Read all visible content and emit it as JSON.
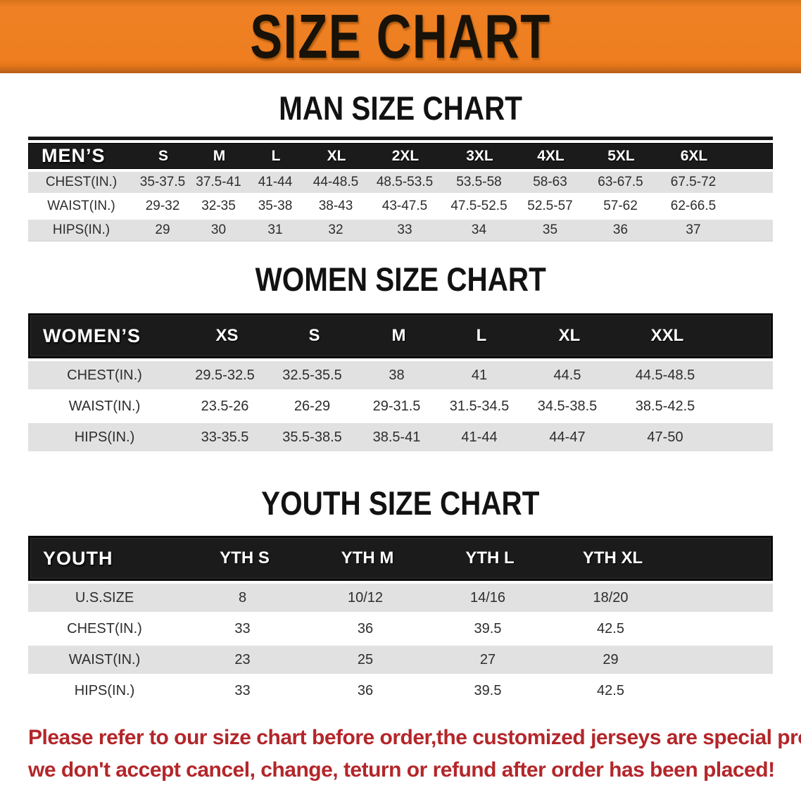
{
  "banner": {
    "title": "SIZE CHART"
  },
  "sections": {
    "men": {
      "heading": "MAN SIZE CHART",
      "table": {
        "corner": "MEN’S",
        "columns": [
          "S",
          "M",
          "L",
          "XL",
          "2XL",
          "3XL",
          "4XL",
          "5XL",
          "6XL"
        ],
        "rows": [
          {
            "label": "CHEST(IN.)",
            "values": [
              "35-37.5",
              "37.5-41",
              "41-44",
              "44-48.5",
              "48.5-53.5",
              "53.5-58",
              "58-63",
              "63-67.5",
              "67.5-72"
            ]
          },
          {
            "label": "WAIST(IN.)",
            "values": [
              "29-32",
              "32-35",
              "35-38",
              "38-43",
              "43-47.5",
              "47.5-52.5",
              "52.5-57",
              "57-62",
              "62-66.5"
            ]
          },
          {
            "label": "HIPS(IN.)",
            "values": [
              "29",
              "30",
              "31",
              "32",
              "33",
              "34",
              "35",
              "36",
              "37"
            ]
          }
        ]
      }
    },
    "women": {
      "heading": "WOMEN SIZE CHART",
      "table": {
        "corner": "WOMEN’S",
        "columns": [
          "XS",
          "S",
          "M",
          "L",
          "XL",
          "XXL"
        ],
        "rows": [
          {
            "label": "CHEST(IN.)",
            "values": [
              "29.5-32.5",
              "32.5-35.5",
              "38",
              "41",
              "44.5",
              "44.5-48.5"
            ]
          },
          {
            "label": "WAIST(IN.)",
            "values": [
              "23.5-26",
              "26-29",
              "29-31.5",
              "31.5-34.5",
              "34.5-38.5",
              "38.5-42.5"
            ]
          },
          {
            "label": "HIPS(IN.)",
            "values": [
              "33-35.5",
              "35.5-38.5",
              "38.5-41",
              "41-44",
              "44-47",
              "47-50"
            ]
          }
        ]
      }
    },
    "youth": {
      "heading": "YOUTH SIZE CHART",
      "table": {
        "corner": "YOUTH",
        "columns": [
          "YTH S",
          "YTH M",
          "YTH L",
          "YTH XL"
        ],
        "rows": [
          {
            "label": "U.S.SIZE",
            "values": [
              "8",
              "10/12",
              "14/16",
              "18/20"
            ]
          },
          {
            "label": "CHEST(IN.)",
            "values": [
              "33",
              "36",
              "39.5",
              "42.5"
            ]
          },
          {
            "label": "WAIST(IN.)",
            "values": [
              "23",
              "25",
              "27",
              "29"
            ]
          },
          {
            "label": "HIPS(IN.)",
            "values": [
              "33",
              "36",
              "39.5",
              "42.5"
            ]
          }
        ]
      }
    }
  },
  "disclaimer": {
    "line1": "Please refer to our size chart before order,the customized jerseys are special products,",
    "line2": "we don't accept cancel, change, teturn or refund after order has been placed!",
    "color": "#b3262a"
  },
  "colors": {
    "banner_orange": "#ee7e20",
    "banner_edge": "#c4681c",
    "header_black": "#1b1b1b",
    "row_shade": "#e1e1e2",
    "disclaimer_red": "#b3262a"
  }
}
